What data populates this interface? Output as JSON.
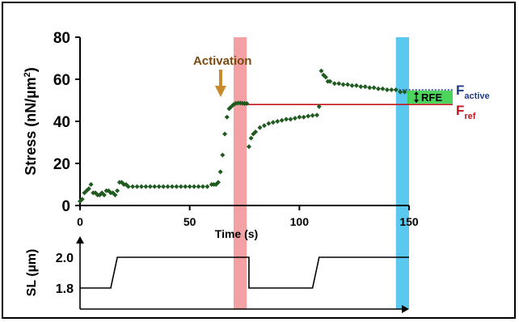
{
  "chart_data": [
    {
      "type": "scatter",
      "xlabel": "Time (s)",
      "ylabel": "Stress (nN/µm²)",
      "ylabel_main": "Stress (nN/µm",
      "ylabel_sup": "2",
      "ylabel_tail": ")",
      "xlim": [
        0,
        150
      ],
      "ylim": [
        0,
        80
      ],
      "xticks": [
        "0",
        "50",
        "100",
        "150"
      ],
      "yticks": [
        "0",
        "20",
        "40",
        "60",
        "80"
      ],
      "grid": false,
      "series": [
        {
          "color": "#1f5a1f",
          "x": [
            0,
            1,
            2,
            3,
            4,
            5,
            6,
            7,
            8,
            9,
            10,
            11,
            12,
            13,
            14,
            15,
            16,
            17,
            18,
            19,
            20,
            21,
            22,
            24,
            26,
            28,
            30,
            32,
            34,
            36,
            38,
            40,
            42,
            44,
            46,
            48,
            50,
            52,
            54,
            56,
            58,
            60,
            61,
            62,
            63,
            64,
            65,
            66,
            67,
            68,
            69,
            70,
            71,
            72,
            73,
            74,
            75,
            76,
            77,
            78,
            79,
            80,
            82,
            84,
            86,
            88,
            90,
            92,
            94,
            96,
            98,
            100,
            102,
            104,
            106,
            108,
            109,
            110,
            111,
            112,
            113,
            114,
            116,
            118,
            120,
            122,
            124,
            126,
            128,
            130,
            132,
            134,
            136,
            138,
            140,
            142,
            144,
            146,
            148
          ],
          "y": [
            2,
            3,
            6,
            7,
            8,
            10,
            6,
            6,
            5,
            5,
            6,
            5,
            7,
            7,
            6,
            6,
            5,
            7,
            11,
            11,
            10,
            10,
            9,
            9,
            9,
            9,
            9,
            9,
            9,
            9,
            9,
            9,
            9,
            9,
            9,
            9,
            9,
            9,
            9,
            9,
            9,
            10,
            10,
            10,
            11,
            16,
            24,
            34,
            42,
            46,
            47,
            48,
            48.5,
            48.7,
            48.7,
            48.6,
            48.5,
            48.5,
            28,
            32,
            34,
            35,
            37,
            38,
            39,
            39.5,
            40,
            40.5,
            41,
            41,
            41.5,
            42,
            42,
            42.5,
            42.8,
            43,
            47,
            64,
            62,
            61,
            59,
            59,
            58,
            58,
            57.5,
            57.5,
            57,
            57,
            56.5,
            56.5,
            56,
            56,
            55.5,
            55.5,
            55,
            55,
            55,
            54,
            54
          ]
        }
      ],
      "annotations": {
        "activation": "Activation",
        "rfe": "RFE",
        "f_active_main": "F",
        "f_active_sub": "active",
        "f_ref_main": "F",
        "f_ref_sub": "ref",
        "f_active_level": 55,
        "f_ref_level": 48,
        "activation_time": 63,
        "stretch_band": [
          70,
          76
        ],
        "final_band": [
          144,
          150
        ]
      }
    },
    {
      "type": "line",
      "ylabel": "SL (µm)",
      "yticks": [
        "1.8",
        "2.0"
      ],
      "x": [
        0,
        14,
        17,
        77,
        77,
        106,
        109,
        150
      ],
      "y": [
        1.8,
        1.8,
        2.0,
        2.0,
        1.8,
        1.8,
        2.0,
        2.0
      ]
    }
  ],
  "colors": {
    "marker": "#1f5a1f",
    "stretch_band": "#f4a1a3",
    "final_band": "#5bc8ef",
    "activation_arrow": "#c98a2e",
    "activation_text": "#7a4a10",
    "f_active": "#1f3c88",
    "f_ref": "#c4161c",
    "rfe_fill": "#2ecc40"
  }
}
